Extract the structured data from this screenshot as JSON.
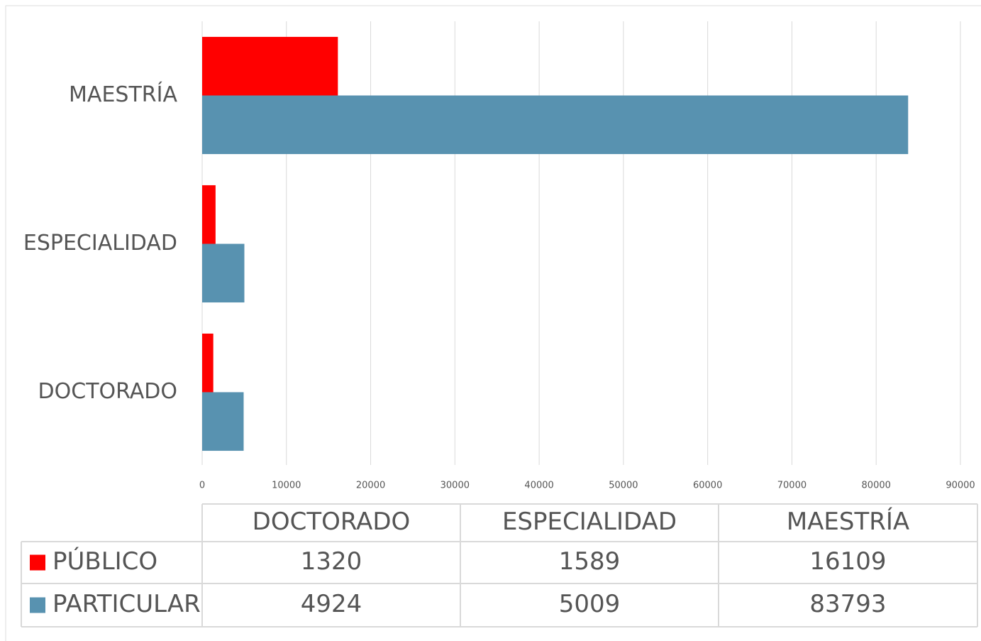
{
  "chart_data": {
    "type": "bar",
    "orientation": "horizontal",
    "categories": [
      "DOCTORADO",
      "ESPECIALIDAD",
      "MAESTRÍA"
    ],
    "series": [
      {
        "name": "PÚBLICO",
        "color": "#ff0000",
        "values": [
          1320,
          1589,
          16109
        ]
      },
      {
        "name": "PARTICULAR",
        "color": "#5892b0",
        "values": [
          4924,
          5009,
          83793
        ]
      }
    ],
    "xlim": [
      0,
      90000
    ],
    "xticks": [
      0,
      10000,
      20000,
      30000,
      40000,
      50000,
      60000,
      70000,
      80000,
      90000
    ],
    "grid": true,
    "data_table": true
  }
}
